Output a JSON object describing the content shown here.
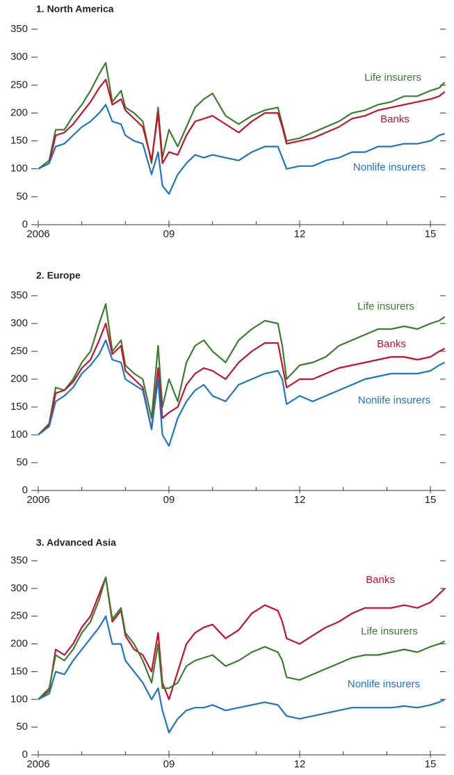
{
  "chart_data": [
    {
      "type": "line",
      "title": "1.  North America",
      "x": [
        2006.0,
        2006.25,
        2006.4,
        2006.6,
        2006.8,
        2007.0,
        2007.2,
        2007.4,
        2007.55,
        2007.7,
        2007.9,
        2008.0,
        2008.2,
        2008.4,
        2008.6,
        2008.75,
        2008.85,
        2009.0,
        2009.2,
        2009.4,
        2009.6,
        2009.8,
        2010.0,
        2010.3,
        2010.6,
        2010.9,
        2011.2,
        2011.5,
        2011.6,
        2011.7,
        2012.0,
        2012.3,
        2012.6,
        2012.9,
        2013.2,
        2013.5,
        2013.8,
        2014.1,
        2014.4,
        2014.7,
        2015.0,
        2015.2,
        2015.33
      ],
      "series": [
        {
          "name": "Life insurers",
          "color": "#3a7d2c",
          "values": [
            100,
            115,
            170,
            170,
            195,
            215,
            240,
            270,
            290,
            220,
            240,
            210,
            200,
            185,
            110,
            210,
            120,
            170,
            140,
            175,
            210,
            225,
            235,
            195,
            180,
            195,
            205,
            210,
            180,
            150,
            155,
            165,
            175,
            185,
            200,
            205,
            215,
            220,
            230,
            230,
            240,
            245,
            255
          ]
        },
        {
          "name": "Banks",
          "color": "#c8102e",
          "values": [
            100,
            110,
            160,
            165,
            180,
            200,
            220,
            245,
            260,
            215,
            225,
            205,
            190,
            175,
            115,
            200,
            110,
            130,
            125,
            160,
            185,
            190,
            195,
            180,
            165,
            185,
            200,
            200,
            175,
            145,
            150,
            155,
            165,
            175,
            190,
            195,
            205,
            210,
            215,
            220,
            225,
            230,
            238
          ]
        },
        {
          "name": "Nonlife insurers",
          "color": "#1a75c9",
          "values": [
            100,
            110,
            140,
            145,
            160,
            175,
            185,
            200,
            215,
            185,
            180,
            160,
            150,
            145,
            90,
            130,
            70,
            55,
            90,
            110,
            125,
            120,
            125,
            120,
            115,
            130,
            140,
            140,
            120,
            100,
            105,
            105,
            115,
            120,
            130,
            130,
            140,
            140,
            145,
            145,
            150,
            160,
            163
          ]
        }
      ],
      "xlim": [
        2006,
        2015.35
      ],
      "xticks": [
        2006,
        {
          "value": 2009,
          "label": "09"
        },
        {
          "value": 2012,
          "label": "12"
        },
        {
          "value": 2015,
          "label": "15"
        }
      ],
      "xminor": [
        2007,
        2008,
        2010,
        2011,
        2013,
        2014
      ],
      "ylim": [
        0,
        350
      ],
      "yticks": [
        0,
        50,
        100,
        150,
        200,
        250,
        300,
        350
      ]
    },
    {
      "type": "line",
      "title": "2.  Europe",
      "x": [
        2006.0,
        2006.25,
        2006.4,
        2006.6,
        2006.8,
        2007.0,
        2007.2,
        2007.4,
        2007.55,
        2007.7,
        2007.9,
        2008.0,
        2008.2,
        2008.4,
        2008.6,
        2008.75,
        2008.85,
        2009.0,
        2009.2,
        2009.4,
        2009.6,
        2009.8,
        2010.0,
        2010.3,
        2010.6,
        2010.9,
        2011.2,
        2011.5,
        2011.6,
        2011.7,
        2012.0,
        2012.3,
        2012.6,
        2012.9,
        2013.2,
        2013.5,
        2013.8,
        2014.1,
        2014.4,
        2014.7,
        2015.0,
        2015.2,
        2015.33
      ],
      "series": [
        {
          "name": "Life insurers",
          "color": "#3a7d2c",
          "values": [
            100,
            120,
            185,
            180,
            200,
            230,
            250,
            300,
            335,
            250,
            270,
            225,
            210,
            200,
            130,
            260,
            150,
            200,
            160,
            230,
            260,
            270,
            250,
            230,
            270,
            290,
            305,
            300,
            260,
            200,
            225,
            230,
            240,
            260,
            270,
            280,
            290,
            290,
            295,
            290,
            300,
            305,
            312
          ]
        },
        {
          "name": "Banks",
          "color": "#c8102e",
          "values": [
            100,
            118,
            175,
            180,
            195,
            220,
            235,
            270,
            300,
            245,
            260,
            215,
            200,
            185,
            110,
            220,
            130,
            140,
            150,
            190,
            210,
            220,
            215,
            200,
            230,
            250,
            265,
            265,
            225,
            185,
            200,
            200,
            210,
            220,
            225,
            230,
            235,
            240,
            240,
            235,
            240,
            250,
            255
          ]
        },
        {
          "name": "Nonlife insurers",
          "color": "#1a75c9",
          "values": [
            100,
            115,
            160,
            170,
            185,
            210,
            225,
            245,
            270,
            235,
            230,
            200,
            190,
            180,
            110,
            200,
            100,
            80,
            130,
            160,
            180,
            190,
            170,
            160,
            190,
            200,
            210,
            215,
            200,
            155,
            170,
            160,
            170,
            180,
            190,
            200,
            205,
            210,
            210,
            210,
            215,
            225,
            230
          ]
        }
      ],
      "xlim": [
        2006,
        2015.35
      ],
      "xticks": [
        2006,
        {
          "value": 2009,
          "label": "09"
        },
        {
          "value": 2012,
          "label": "12"
        },
        {
          "value": 2015,
          "label": "15"
        }
      ],
      "xminor": [
        2007,
        2008,
        2010,
        2011,
        2013,
        2014
      ],
      "ylim": [
        0,
        350
      ],
      "yticks": [
        0,
        50,
        100,
        150,
        200,
        250,
        300,
        350
      ]
    },
    {
      "type": "line",
      "title": "3.  Advanced Asia",
      "x": [
        2006.0,
        2006.25,
        2006.4,
        2006.6,
        2006.8,
        2007.0,
        2007.2,
        2007.4,
        2007.55,
        2007.7,
        2007.9,
        2008.0,
        2008.2,
        2008.4,
        2008.6,
        2008.75,
        2008.85,
        2009.0,
        2009.2,
        2009.4,
        2009.6,
        2009.8,
        2010.0,
        2010.3,
        2010.6,
        2010.9,
        2011.2,
        2011.5,
        2011.6,
        2011.7,
        2012.0,
        2012.3,
        2012.6,
        2012.9,
        2013.2,
        2013.5,
        2013.8,
        2014.1,
        2014.4,
        2014.7,
        2015.0,
        2015.2,
        2015.33
      ],
      "series": [
        {
          "name": "Banks",
          "color": "#c8102e",
          "values": [
            100,
            115,
            190,
            180,
            200,
            230,
            250,
            290,
            320,
            240,
            260,
            215,
            190,
            180,
            150,
            220,
            130,
            100,
            150,
            200,
            220,
            230,
            235,
            210,
            225,
            255,
            270,
            260,
            240,
            210,
            200,
            215,
            230,
            240,
            255,
            265,
            265,
            265,
            270,
            265,
            275,
            290,
            300
          ]
        },
        {
          "name": "Life insurers",
          "color": "#3a7d2c",
          "values": [
            100,
            120,
            180,
            170,
            190,
            220,
            240,
            280,
            320,
            245,
            265,
            220,
            200,
            170,
            130,
            200,
            120,
            120,
            130,
            160,
            170,
            175,
            180,
            160,
            170,
            185,
            195,
            185,
            170,
            140,
            135,
            145,
            155,
            165,
            175,
            180,
            180,
            185,
            190,
            185,
            195,
            200,
            205
          ]
        },
        {
          "name": "Nonlife insurers",
          "color": "#1a75c9",
          "values": [
            100,
            110,
            150,
            145,
            170,
            190,
            210,
            230,
            250,
            200,
            200,
            170,
            150,
            130,
            100,
            120,
            80,
            40,
            65,
            80,
            85,
            85,
            90,
            80,
            85,
            90,
            95,
            90,
            80,
            70,
            65,
            70,
            75,
            80,
            85,
            85,
            85,
            85,
            88,
            85,
            90,
            95,
            100
          ]
        }
      ],
      "xlim": [
        2006,
        2015.35
      ],
      "xticks": [
        2006,
        {
          "value": 2009,
          "label": "09"
        },
        {
          "value": 2012,
          "label": "12"
        },
        {
          "value": 2015,
          "label": "15"
        }
      ],
      "xminor": [
        2007,
        2008,
        2010,
        2011,
        2013,
        2014
      ],
      "ylim": [
        0,
        350
      ],
      "yticks": [
        0,
        50,
        100,
        150,
        200,
        250,
        300,
        350
      ]
    }
  ]
}
